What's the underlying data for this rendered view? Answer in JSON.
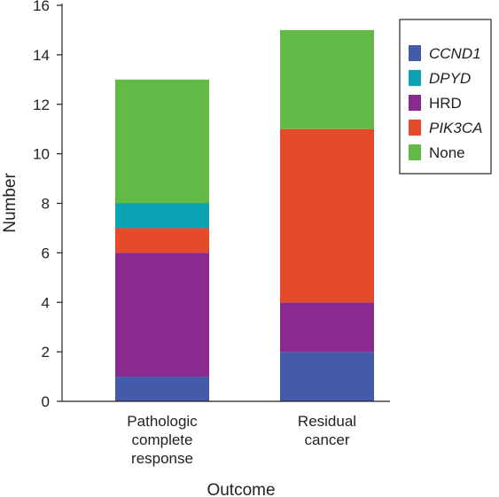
{
  "chart_data": {
    "type": "bar",
    "stacked": true,
    "xlabel": "Outcome",
    "ylabel": "Number",
    "ylim": [
      0,
      16
    ],
    "yticks": [
      0,
      2,
      4,
      6,
      8,
      10,
      12,
      14,
      16
    ],
    "categories": [
      [
        "Pathologic",
        "complete",
        "response"
      ],
      [
        "Residual",
        "cancer"
      ]
    ],
    "series": [
      {
        "name": "CCND1",
        "italic": true,
        "color": "#435BA8",
        "values": [
          1,
          2
        ]
      },
      {
        "name": "HRD",
        "italic": false,
        "color": "#8B2A8E",
        "values": [
          5,
          2
        ]
      },
      {
        "name": "PIK3CA",
        "italic": true,
        "color": "#E54B2A",
        "values": [
          1,
          7
        ]
      },
      {
        "name": "DPYD",
        "italic": true,
        "color": "#0AA3B4",
        "values": [
          1,
          0
        ]
      },
      {
        "name": "None",
        "italic": false,
        "color": "#63B946",
        "values": [
          5,
          4
        ]
      }
    ],
    "legend": {
      "position": "top-right",
      "order": [
        "CCND1",
        "DPYD",
        "HRD",
        "PIK3CA",
        "None"
      ]
    },
    "grid": false
  }
}
